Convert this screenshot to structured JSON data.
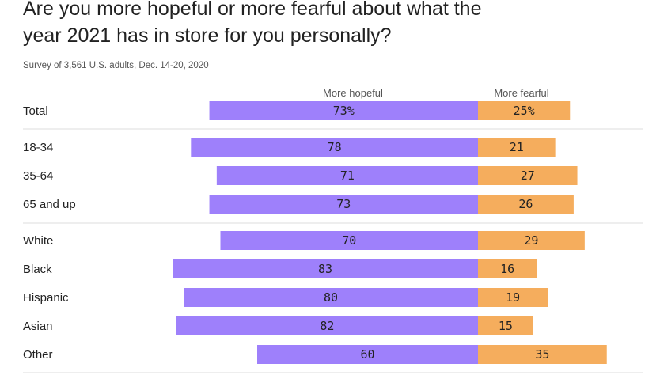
{
  "title": "Are you more hopeful or more fearful about what the year 2021 has in store for you personally?",
  "subtitle": "Survey of 3,561 U.S. adults, Dec. 14-20, 2020",
  "colors": {
    "hopeful": "#9e80fb",
    "fearful": "#f5ad5d",
    "divider": "#dddddd"
  },
  "chart_data": {
    "type": "bar",
    "orientation": "horizontal-diverging",
    "series": [
      {
        "name": "More hopeful",
        "values": [
          73,
          78,
          71,
          73,
          70,
          83,
          80,
          82,
          60
        ]
      },
      {
        "name": "More fearful",
        "values": [
          25,
          21,
          27,
          26,
          29,
          16,
          19,
          15,
          35
        ]
      }
    ],
    "categories": [
      "Total",
      "18-34",
      "35-64",
      "65 and up",
      "White",
      "Black",
      "Hispanic",
      "Asian",
      "Other"
    ],
    "groups": [
      [
        "Total"
      ],
      [
        "18-34",
        "35-64",
        "65 and up"
      ],
      [
        "White",
        "Black",
        "Hispanic",
        "Asian",
        "Other"
      ]
    ],
    "labels": {
      "hopeful": [
        "73%",
        "78",
        "71",
        "73",
        "70",
        "83",
        "80",
        "82",
        "60"
      ],
      "fearful": [
        "25%",
        "21",
        "27",
        "26",
        "29",
        "16",
        "19",
        "15",
        "35"
      ]
    },
    "legend": "column headers above bars"
  }
}
